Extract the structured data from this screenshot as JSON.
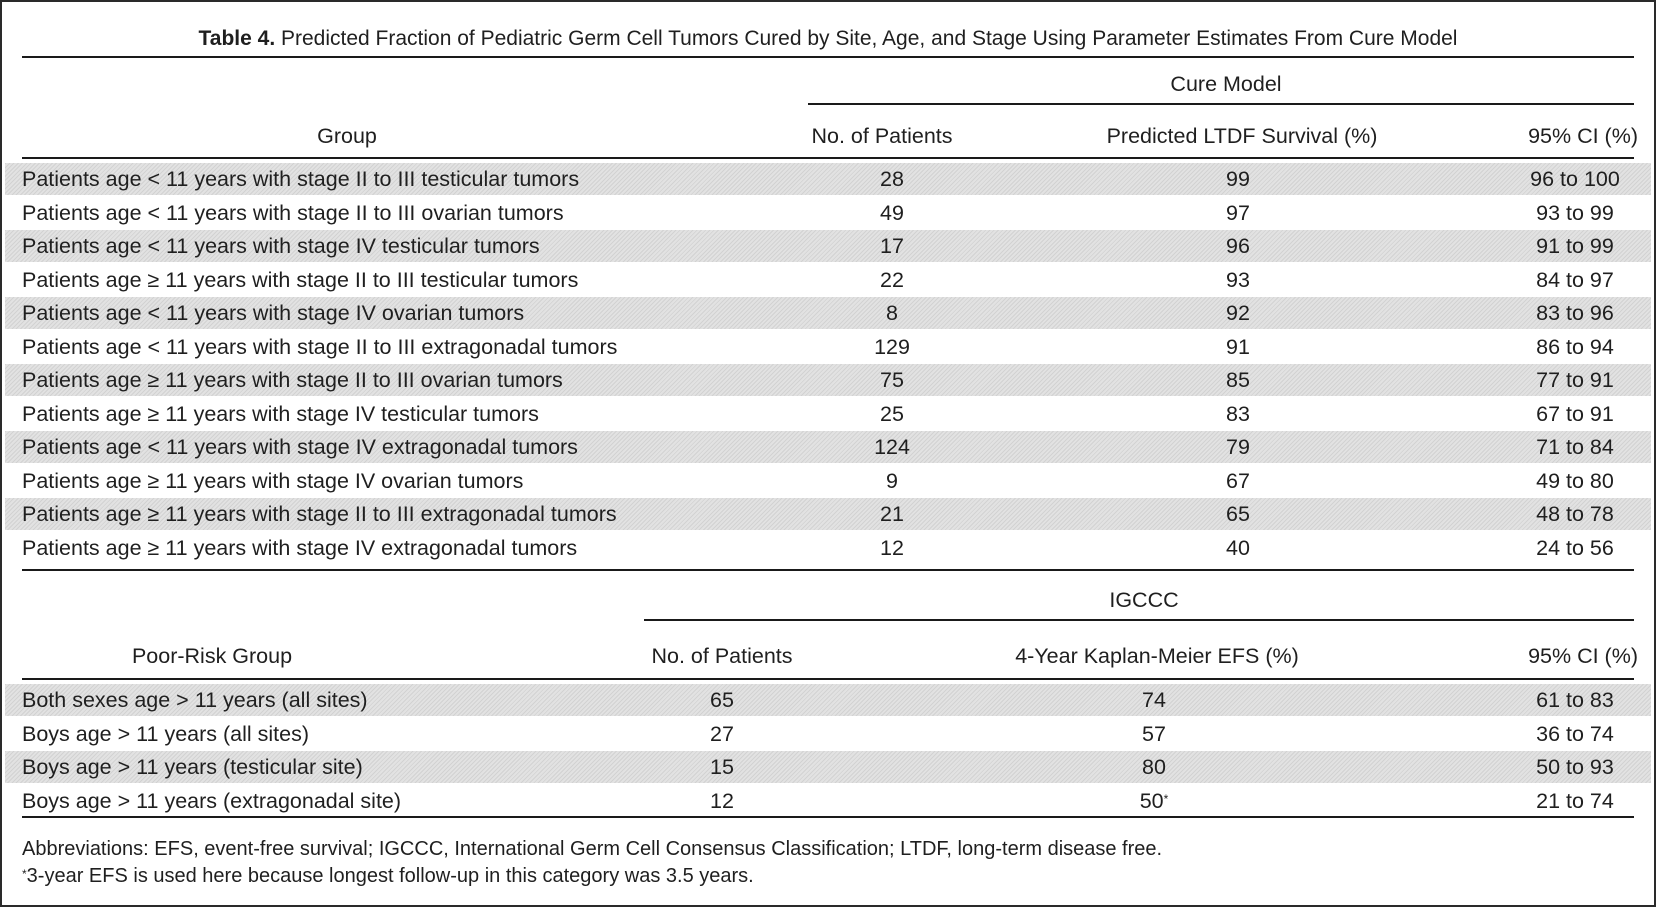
{
  "caption": {
    "label": "Table 4.",
    "text": " Predicted Fraction of Pediatric Germ Cell Tumors Cured by Site, Age, and Stage Using Parameter Estimates From Cure Model"
  },
  "section1": {
    "group_header": "Cure Model",
    "col_group": "Group",
    "col_patients": "No. of Patients",
    "col_survival": "Predicted LTDF Survival (%)",
    "col_ci": "95% CI (%)",
    "rows": [
      {
        "group": "Patients age < 11 years with stage II to III testicular tumors",
        "patients": "28",
        "value": "99",
        "ci": "96 to 100"
      },
      {
        "group": "Patients age < 11 years with stage II to III ovarian tumors",
        "patients": "49",
        "value": "97",
        "ci": "93 to 99"
      },
      {
        "group": "Patients age < 11 years with stage IV testicular tumors",
        "patients": "17",
        "value": "96",
        "ci": "91 to 99"
      },
      {
        "group": "Patients age ≥ 11 years with stage II to III testicular tumors",
        "patients": "22",
        "value": "93",
        "ci": "84 to 97"
      },
      {
        "group": "Patients age < 11 years with stage IV ovarian tumors",
        "patients": "8",
        "value": "92",
        "ci": "83 to 96"
      },
      {
        "group": "Patients age < 11 years with stage II to III extragonadal tumors",
        "patients": "129",
        "value": "91",
        "ci": "86 to 94"
      },
      {
        "group": "Patients age ≥ 11 years with stage II to III ovarian tumors",
        "patients": "75",
        "value": "85",
        "ci": "77 to 91"
      },
      {
        "group": "Patients age ≥ 11 years with stage IV testicular tumors",
        "patients": "25",
        "value": "83",
        "ci": "67 to 91"
      },
      {
        "group": "Patients age < 11 years with stage IV extragonadal tumors",
        "patients": "124",
        "value": "79",
        "ci": "71 to 84"
      },
      {
        "group": "Patients age ≥ 11 years with stage IV ovarian tumors",
        "patients": "9",
        "value": "67",
        "ci": "49 to 80"
      },
      {
        "group": "Patients age ≥ 11 years with stage II to III extragonadal tumors",
        "patients": "21",
        "value": "65",
        "ci": "48 to 78"
      },
      {
        "group": "Patients age ≥ 11 years with stage IV extragonadal tumors",
        "patients": "12",
        "value": "40",
        "ci": "24 to 56"
      }
    ]
  },
  "section2": {
    "group_header": "IGCCC",
    "col_group": "Poor-Risk Group",
    "col_patients": "No. of Patients",
    "col_survival": "4-Year Kaplan-Meier EFS (%)",
    "col_ci": "95% CI (%)",
    "rows": [
      {
        "group": "Both sexes age > 11 years (all sites)",
        "patients": "65",
        "value": "74",
        "mark": "",
        "ci": "61 to 83"
      },
      {
        "group": "Boys age > 11 years (all sites)",
        "patients": "27",
        "value": "57",
        "mark": "",
        "ci": "36 to 74"
      },
      {
        "group": "Boys age > 11 years (testicular site)",
        "patients": "15",
        "value": "80",
        "mark": "",
        "ci": "50 to 93"
      },
      {
        "group": "Boys age > 11 years (extragonadal site)",
        "patients": "12",
        "value": "50",
        "mark": "*",
        "ci": "21 to 74"
      }
    ]
  },
  "footnotes": {
    "abbreviations": "Abbreviations: EFS, event-free survival; IGCCC, International Germ Cell Consensus Classification; LTDF, long-term disease free.",
    "note_mark": "*",
    "note": "3-year EFS is used here because longest follow-up in this category was 3.5 years."
  }
}
